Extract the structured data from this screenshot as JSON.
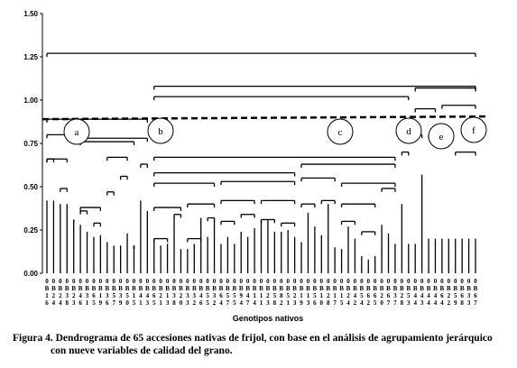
{
  "chart_data": {
    "type": "dendrogram",
    "ylim": [
      0,
      1.5
    ],
    "yticks": [
      "0.00",
      "0.25",
      "0.50",
      "0.75",
      "1.00",
      "1.25",
      "1.50"
    ],
    "xlabel": "Genotipos nativos",
    "cut_height": 0.89,
    "leaf_labels": [
      [
        "0",
        "B",
        "1",
        "6"
      ],
      [
        "0",
        "B",
        "2",
        "4"
      ],
      [
        "0",
        "B",
        "2",
        "4"
      ],
      [
        "0",
        "B",
        "3",
        "8"
      ],
      [
        "0",
        "B",
        "2",
        "3"
      ],
      [
        "0",
        "B",
        "4",
        "6"
      ],
      [
        "0",
        "B",
        "3",
        "1"
      ],
      [
        "0",
        "B",
        "6",
        "5"
      ],
      [
        "0",
        "B",
        "1",
        "9"
      ],
      [
        "0",
        "B",
        "3",
        "6"
      ],
      [
        "0",
        "B",
        "5",
        "7"
      ],
      [
        "0",
        "B",
        "3",
        "9"
      ],
      [
        "0",
        "B",
        "5",
        "0"
      ],
      [
        "0",
        "B",
        "1",
        "5"
      ],
      [
        "0",
        "B",
        "4",
        "1"
      ],
      [
        "0",
        "B",
        "4",
        "3"
      ],
      [
        "0",
        "B",
        "6",
        "5"
      ],
      [
        "0",
        "B",
        "2",
        "1"
      ],
      [
        "0",
        "B",
        "1",
        "3"
      ],
      [
        "0",
        "B",
        "3",
        "8"
      ],
      [
        "0",
        "B",
        "2",
        "0"
      ],
      [
        "0",
        "B",
        "3",
        "3"
      ],
      [
        "0",
        "B",
        "3",
        "2"
      ],
      [
        "0",
        "B",
        "4",
        "6"
      ],
      [
        "0",
        "B",
        "5",
        "5"
      ],
      [
        "0",
        "B",
        "3",
        "2"
      ],
      [
        "0",
        "B",
        "6",
        "4"
      ],
      [
        "0",
        "B",
        "5",
        "7"
      ],
      [
        "0",
        "B",
        "5",
        "5"
      ],
      [
        "0",
        "B",
        "9",
        "4"
      ],
      [
        "0",
        "B",
        "4",
        "7"
      ],
      [
        "0",
        "B",
        "1",
        "4"
      ],
      [
        "0",
        "B",
        "1",
        "1"
      ],
      [
        "0",
        "B",
        "2",
        "3"
      ],
      [
        "0",
        "B",
        "5",
        "8"
      ],
      [
        "0",
        "B",
        "8",
        "2"
      ],
      [
        "0",
        "B",
        "5",
        "1"
      ],
      [
        "0",
        "B",
        "2",
        "3"
      ],
      [
        "0",
        "B",
        "1",
        "9"
      ],
      [
        "0",
        "B",
        "1",
        "3"
      ],
      [
        "0",
        "B",
        "5",
        "6"
      ],
      [
        "0",
        "B",
        "1",
        "0"
      ],
      [
        "0",
        "B",
        "2",
        "8"
      ],
      [
        "0",
        "B",
        "1",
        "7"
      ],
      [
        "0",
        "B",
        "1",
        "5"
      ],
      [
        "0",
        "B",
        "2",
        "4"
      ],
      [
        "0",
        "B",
        "4",
        "2"
      ],
      [
        "0",
        "B",
        "5",
        "4"
      ],
      [
        "0",
        "B",
        "6",
        "2"
      ],
      [
        "0",
        "B",
        "6",
        "5"
      ],
      [
        "0",
        "B",
        "2",
        "0"
      ],
      [
        "0",
        "B",
        "6",
        "7"
      ],
      [
        "0",
        "B",
        "3",
        "7"
      ],
      [
        "0",
        "B",
        "2",
        "8"
      ],
      [
        "0",
        "B",
        "5",
        "3"
      ],
      [
        "0",
        "B",
        "4",
        "4"
      ],
      [
        "0",
        "B",
        "4",
        "3"
      ],
      [
        "0",
        "B",
        "4",
        "4"
      ],
      [
        "0",
        "B",
        "4",
        "4"
      ],
      [
        "0",
        "B",
        "6",
        "4"
      ],
      [
        "0",
        "B",
        "2",
        "2"
      ],
      [
        "0",
        "B",
        "5",
        "9"
      ],
      [
        "0",
        "B",
        "6",
        "8"
      ],
      [
        "0",
        "B",
        "3",
        "3"
      ],
      [
        "0",
        "B",
        "6",
        "7"
      ]
    ],
    "leaf_heights": [
      0.42,
      0.42,
      0.4,
      0.4,
      0.31,
      0.28,
      0.24,
      0.21,
      0.22,
      0.18,
      0.16,
      0.16,
      0.23,
      0.16,
      0.42,
      0.36,
      0.2,
      0.16,
      0.17,
      0.33,
      0.14,
      0.14,
      0.17,
      0.32,
      0.21,
      0.32,
      0.17,
      0.21,
      0.17,
      0.24,
      0.21,
      0.26,
      0.31,
      0.31,
      0.24,
      0.24,
      0.25,
      0.21,
      0.18,
      0.35,
      0.27,
      0.22,
      0.4,
      0.15,
      0.14,
      0.27,
      0.2,
      0.1,
      0.08,
      0.1,
      0.28,
      0.23,
      0.17,
      0.4,
      0.17,
      0.17,
      0.57,
      0.2,
      0.2,
      0.2,
      0.2,
      0.2,
      0.2,
      0.2,
      0.2
    ],
    "clusters": [
      {
        "label": "a"
      },
      {
        "label": "b"
      },
      {
        "label": "c"
      },
      {
        "label": "d"
      },
      {
        "label": "e"
      },
      {
        "label": "f"
      }
    ]
  },
  "caption": {
    "line1": "Figura 4. Dendrograma de 65 accesiones nativas de frijol, con base en el análisis de agrupamiento jerárquico",
    "line2": "con nueve variables de calidad del grano."
  }
}
